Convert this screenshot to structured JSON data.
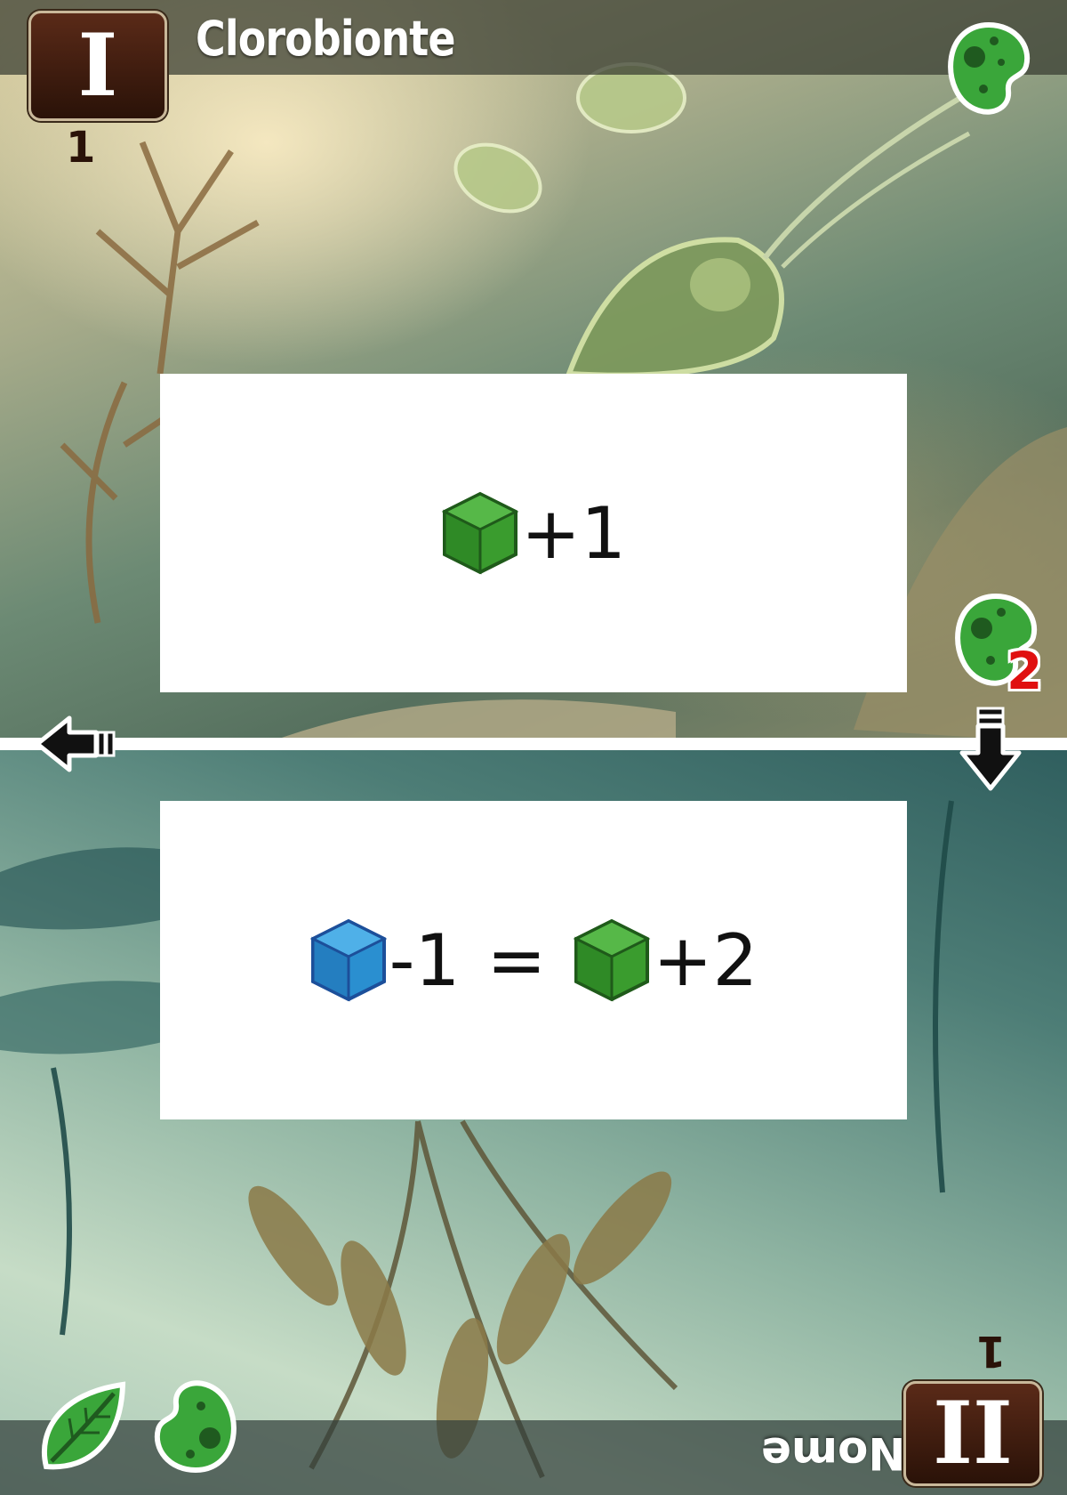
{
  "card": {
    "title": "Clorobionte",
    "top_numeral": "I",
    "top_number": "1",
    "bottom_numeral": "II",
    "bottom_number": "1",
    "bottom_label": "Nome",
    "badge_number": "2"
  },
  "effects": {
    "top": {
      "cube_color": "green",
      "amount": "+1"
    },
    "bottom": {
      "cost_cube_color": "blue",
      "cost_amount": "-1",
      "equals": "=",
      "gain_cube_color": "green",
      "gain_amount": "+2"
    }
  },
  "icons": {
    "top_right": "green-cell-icon",
    "right_badge": "green-cell-icon",
    "left_arrow": "arrow-left-icon",
    "down_arrow": "arrow-down-icon",
    "bottom_left_leaf": "leaf-icon",
    "bottom_left_cell": "green-cell-icon"
  },
  "colors": {
    "green_cube": "#3a9c2e",
    "blue_cube": "#2a8fd0",
    "numeral_box": "#3a1a0c",
    "badge_red": "#e01010"
  }
}
